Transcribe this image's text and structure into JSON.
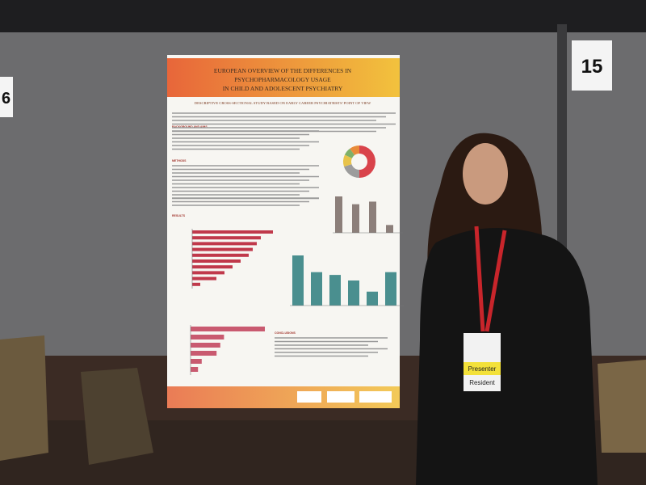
{
  "board": {
    "left_number": "6",
    "right_number": "15"
  },
  "poster": {
    "title_lines": [
      "EUROPEAN OVERVIEW OF THE DIFFERENCES IN",
      "PSYCHOPHARMACOLOGY USAGE",
      "IN CHILD AND ADOLESCENT PSYCHIATRY"
    ],
    "subtitle": "DESCRIPTIVE CROSS-SECTIONAL STUDY BASED ON EARLY CAREER PSYCHIATRISTS' POINT OF VIEW",
    "sections": [
      "BACKGROUND AND AIMS",
      "METHODS",
      "RESULTS",
      "CONCLUSIONS"
    ],
    "pie": {
      "values": [
        50,
        20,
        12,
        8,
        10
      ],
      "colors": [
        "#d9434b",
        "#9c9c9c",
        "#e8c34a",
        "#7fb069",
        "#e98b3a"
      ]
    },
    "small_bars": {
      "values": [
        70,
        55,
        60,
        15
      ],
      "color": "#8c7f7a"
    },
    "chart1": {
      "values": [
        100,
        85,
        80,
        75,
        70,
        60,
        50,
        40,
        30,
        10
      ],
      "color": "#c0394b"
    },
    "chart2": {
      "values": [
        90,
        60,
        55,
        45,
        25,
        60
      ],
      "color": "#4a8f8f"
    },
    "chart3": {
      "values": [
        100,
        45,
        40,
        35,
        15,
        10
      ],
      "color": "#c95a70"
    }
  },
  "badge": {
    "role": "Presenter",
    "status": "Resident"
  }
}
